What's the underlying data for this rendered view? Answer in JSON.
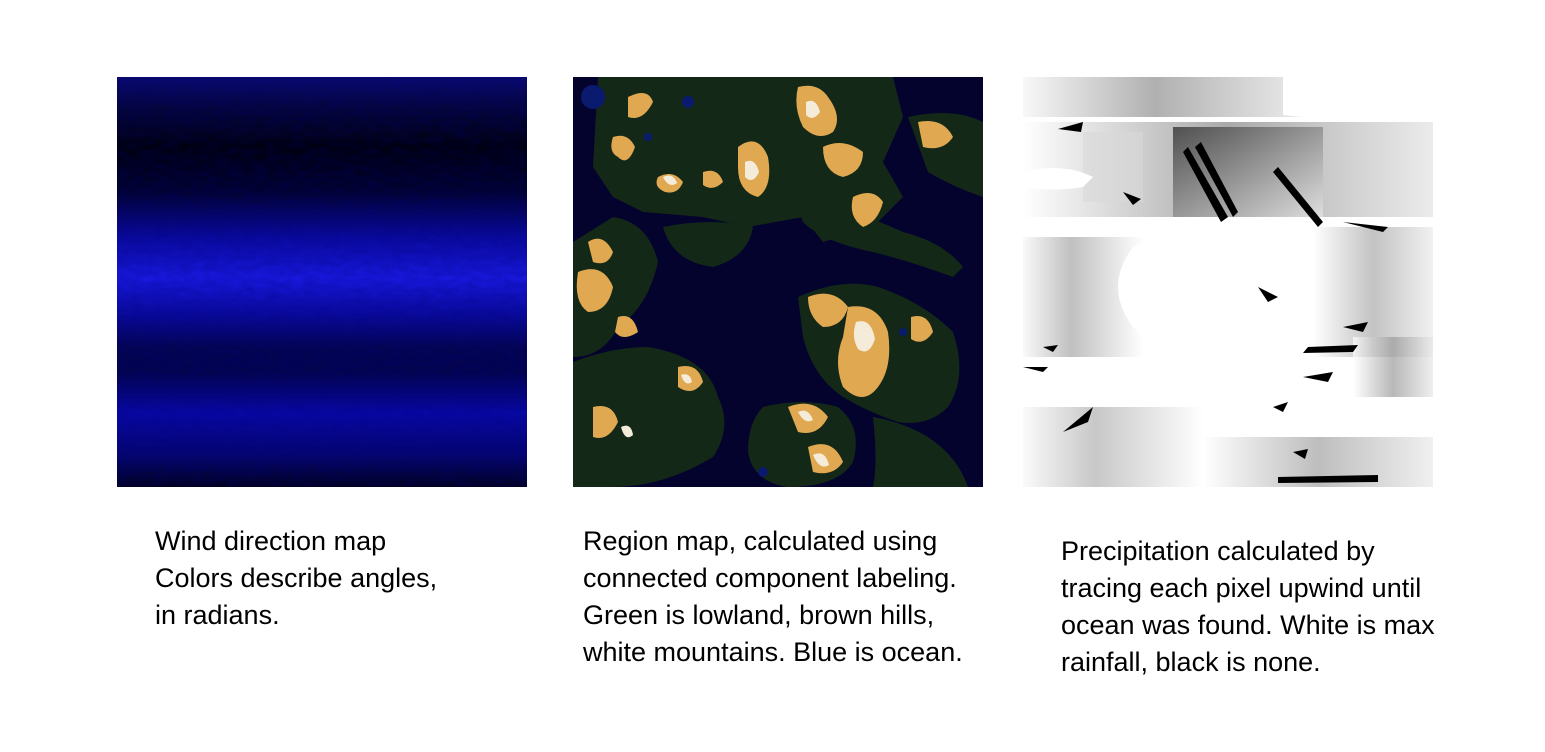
{
  "panels": {
    "wind": {
      "caption_lines": [
        "Wind direction map",
        "Colors describe angles,",
        "in radians."
      ]
    },
    "region": {
      "caption_lines": [
        "Region map, calculated using",
        "connected component labeling.",
        "Green is lowland, brown hills,",
        "white mountains. Blue is ocean."
      ]
    },
    "precipitation": {
      "caption_lines": [
        "Precipitation calculated by",
        "tracing each pixel upwind until",
        "ocean was found. White is max",
        "rainfall, black is none."
      ]
    }
  },
  "colors": {
    "ocean": "#03032e",
    "lowland": "#142817",
    "hills": "#e0a850",
    "mountains": "#f4ecd8",
    "wind_dark": "#000008",
    "wind_bright": "#1a1ae6",
    "precip_white": "#ffffff",
    "precip_black": "#000000"
  }
}
